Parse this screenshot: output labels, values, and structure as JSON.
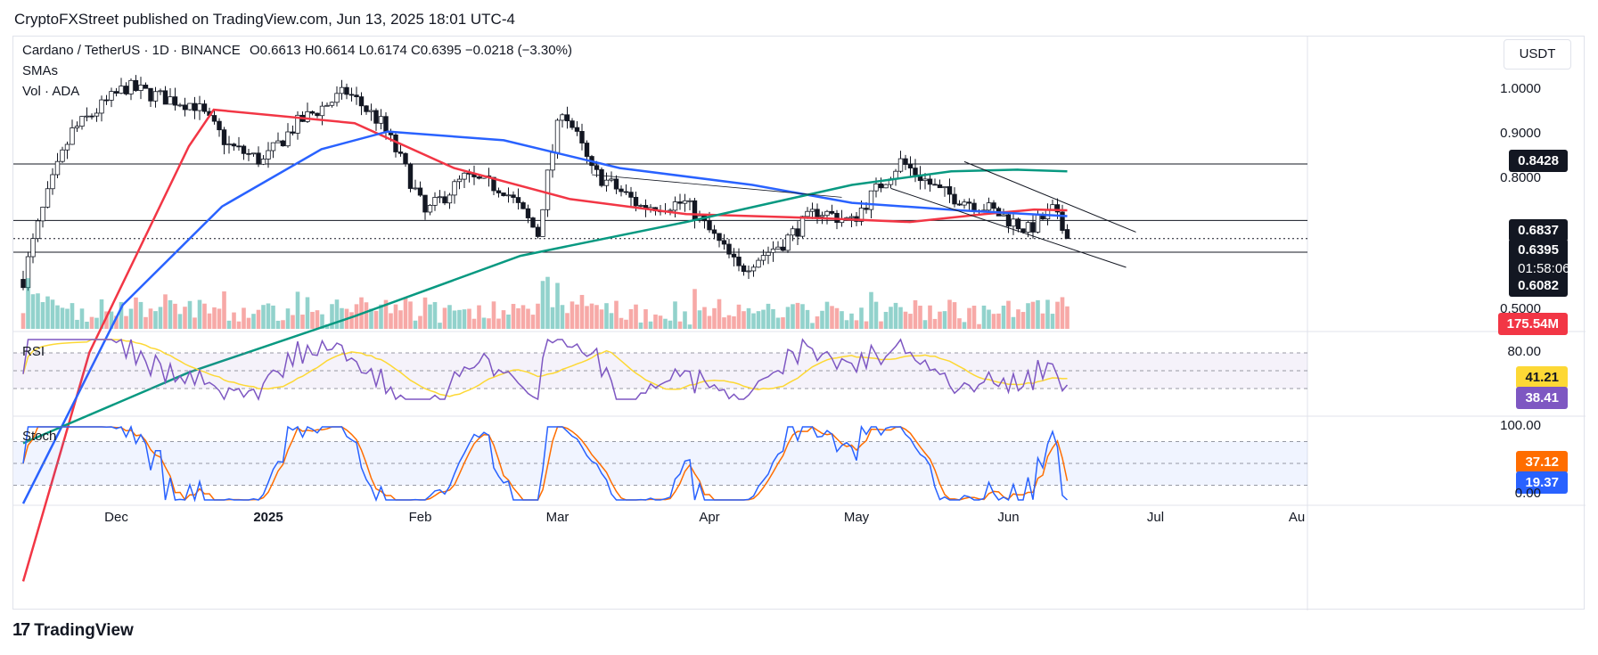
{
  "header": {
    "publisher_line": "CryptoFXStreet published on TradingView.com, Jun 13, 2025 18:01 UTC-4"
  },
  "footer": {
    "brand": "TradingView",
    "logo_glyph": "17"
  },
  "legend": {
    "symbol": "Cardano / TetherUS · 1D · BINANCE",
    "ohlc": "O0.6613  H0.6614  L0.6174  C0.6395  −0.0218 (−3.30%)",
    "smas": "SMAs",
    "vol": "Vol · ADA",
    "currency": "USDT",
    "rsi": "RSI",
    "stoch": "Stoch"
  },
  "price_tags": {
    "upper": "0.8428",
    "mid": "0.6837",
    "last": "0.6395",
    "countdown": "01:58:06",
    "lower": "0.6082",
    "volume": "175.54M",
    "rsi_ma": "41.21",
    "rsi": "38.41",
    "stoch_d": "37.12",
    "stoch_k": "19.37"
  },
  "colors": {
    "up": "#26a69a",
    "down": "#ef5350",
    "sma_red": "#f23645",
    "sma_blue": "#2962ff",
    "sma_green": "#089981",
    "rsi": "#7e57c2",
    "rsi_ma": "#fdd835",
    "stoch_k": "#2962ff",
    "stoch_d": "#ff6d00"
  },
  "chart_data": {
    "type": "candlestick",
    "x_tick_labels": [
      "Dec",
      "2025",
      "Feb",
      "Mar",
      "Apr",
      "May",
      "Jun",
      "Jul",
      "Au"
    ],
    "y_tick_labels": [
      "1.0000",
      "0.9000",
      "0.8000",
      "0.5000"
    ],
    "y_scale": "log",
    "horizontal_levels": [
      0.8428,
      0.6837,
      0.6082
    ],
    "close_path": [
      {
        "x": "2024-11-12",
        "y": 0.55
      },
      {
        "x": "2024-11-22",
        "y": 0.95
      },
      {
        "x": "2024-12-03",
        "y": 1.12
      },
      {
        "x": "2024-12-10",
        "y": 1.08
      },
      {
        "x": "2024-12-17",
        "y": 1.05
      },
      {
        "x": "2024-12-24",
        "y": 0.9
      },
      {
        "x": "2024-12-31",
        "y": 0.85
      },
      {
        "x": "2025-01-07",
        "y": 0.98
      },
      {
        "x": "2025-01-17",
        "y": 1.1
      },
      {
        "x": "2025-01-24",
        "y": 0.98
      },
      {
        "x": "2025-02-02",
        "y": 0.7
      },
      {
        "x": "2025-02-10",
        "y": 0.8
      },
      {
        "x": "2025-02-18",
        "y": 0.77
      },
      {
        "x": "2025-02-25",
        "y": 0.65
      },
      {
        "x": "2025-03-02",
        "y": 1.04
      },
      {
        "x": "2025-03-08",
        "y": 0.82
      },
      {
        "x": "2025-03-18",
        "y": 0.72
      },
      {
        "x": "2025-03-27",
        "y": 0.73
      },
      {
        "x": "2025-04-07",
        "y": 0.57
      },
      {
        "x": "2025-04-16",
        "y": 0.63
      },
      {
        "x": "2025-04-23",
        "y": 0.71
      },
      {
        "x": "2025-04-30",
        "y": 0.68
      },
      {
        "x": "2025-05-10",
        "y": 0.85
      },
      {
        "x": "2025-05-18",
        "y": 0.76
      },
      {
        "x": "2025-05-27",
        "y": 0.72
      },
      {
        "x": "2025-06-05",
        "y": 0.66
      },
      {
        "x": "2025-06-10",
        "y": 0.71
      },
      {
        "x": "2025-06-13",
        "y": 0.6395
      }
    ],
    "series": [
      {
        "values": [
          [
            0,
            0.18
          ],
          [
            8,
            0.42
          ],
          [
            20,
            0.9
          ],
          [
            23,
            1.03
          ],
          [
            40,
            0.98
          ],
          [
            52,
            0.83
          ],
          [
            66,
            0.74
          ],
          [
            80,
            0.7
          ],
          [
            96,
            0.69
          ],
          [
            107,
            0.68
          ],
          [
            116,
            0.7
          ],
          [
            122,
            0.712
          ],
          [
            126,
            0.71
          ]
        ]
      },
      {
        "values": [
          [
            0,
            0.24
          ],
          [
            12,
            0.5
          ],
          [
            24,
            0.72
          ],
          [
            36,
            0.89
          ],
          [
            44,
            0.95
          ],
          [
            58,
            0.92
          ],
          [
            72,
            0.83
          ],
          [
            88,
            0.78
          ],
          [
            100,
            0.73
          ],
          [
            113,
            0.71
          ],
          [
            126,
            0.695
          ]
        ]
      },
      {
        "values": [
          [
            0,
            0.3
          ],
          [
            20,
            0.39
          ],
          [
            40,
            0.48
          ],
          [
            60,
            0.6
          ],
          [
            80,
            0.68
          ],
          [
            100,
            0.78
          ],
          [
            112,
            0.82
          ],
          [
            120,
            0.825
          ],
          [
            126,
            0.82
          ]
        ]
      }
    ],
    "rsi": {
      "overbought": 70,
      "oversold": 30,
      "y_tick": "80.00"
    },
    "stoch": {
      "upper": 80,
      "lower": 20,
      "y_ticks": [
        "100.00",
        "0.00"
      ]
    }
  }
}
